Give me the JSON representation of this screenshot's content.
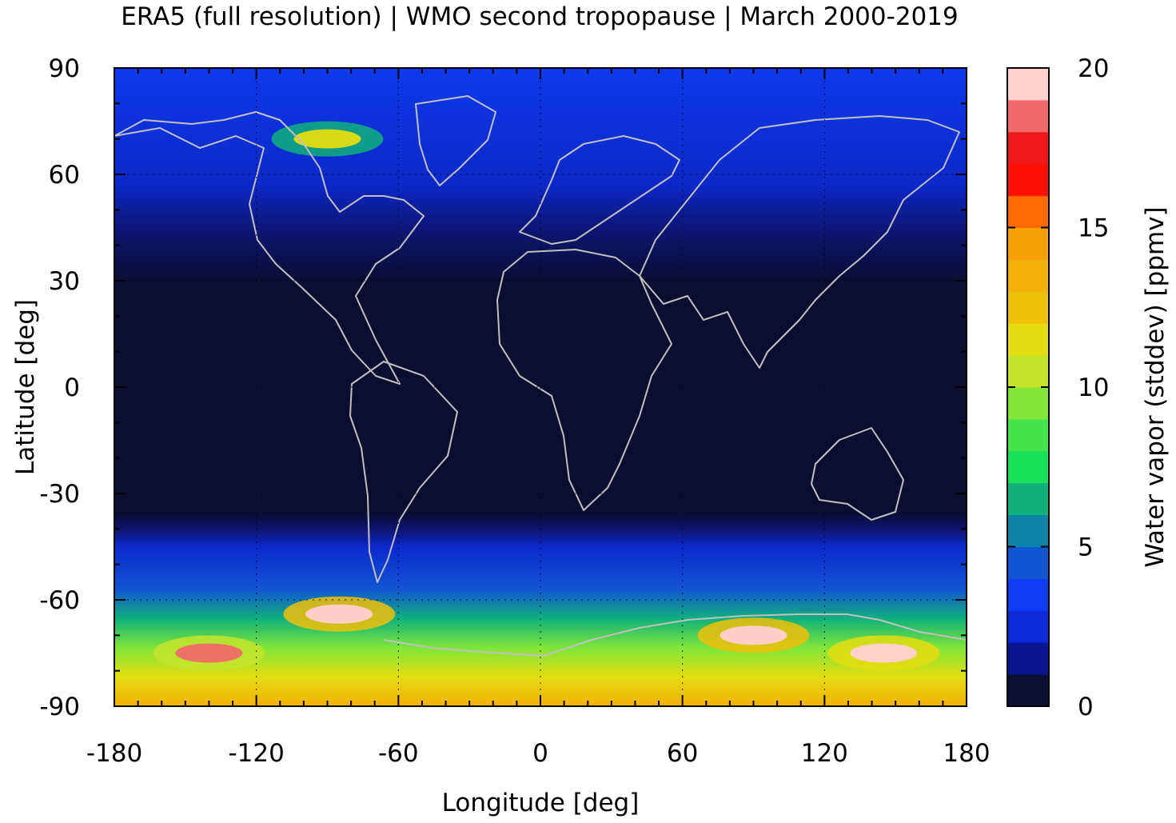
{
  "title": "ERA5 (full resolution) | WMO second tropopause | March 2000-2019",
  "map": {
    "projection": "equirectangular",
    "xlabel": "Longitude [deg]",
    "ylabel": "Latitude [deg]",
    "xlim": [
      -180,
      180
    ],
    "ylim": [
      -90,
      90
    ],
    "xticks": [
      -180,
      -120,
      -60,
      0,
      60,
      120,
      180
    ],
    "yticks": [
      90,
      60,
      30,
      0,
      -30,
      -60,
      -90
    ],
    "xtick_labels": [
      "-180",
      "-120",
      "-60",
      "0",
      "60",
      "120",
      "180"
    ],
    "ytick_labels": [
      "90",
      "60",
      "30",
      "0",
      "-30",
      "-60",
      "-90"
    ],
    "gridlines": "dotted",
    "background_color": "#0c0d33",
    "coastline_color": "#c0c0c0",
    "field_bands": [
      {
        "region": "northern-high-latitudes",
        "lat_range": [
          30,
          90
        ],
        "typical_value_ppmv": 2.5
      },
      {
        "region": "tropics-and-subtropics",
        "lat_range": [
          -40,
          30
        ],
        "typical_value_ppmv": 0.5
      },
      {
        "region": "southern-midlatitudes",
        "lat_range": [
          -60,
          -40
        ],
        "typical_value_ppmv": 4
      },
      {
        "region": "southern-high-latitudes",
        "lat_range": [
          -90,
          -60
        ],
        "typical_value_ppmv": 12
      }
    ],
    "hotspots": [
      {
        "region": "canadian-arctic",
        "lon": -90,
        "lat": 70,
        "value_ppmv": 11
      },
      {
        "region": "south-pacific",
        "lon": -140,
        "lat": -75,
        "value_ppmv": 18
      },
      {
        "region": "drake-passage",
        "lon": -85,
        "lat": -64,
        "value_ppmv": 20
      },
      {
        "region": "southern-indian-ocean",
        "lon": 90,
        "lat": -70,
        "value_ppmv": 20
      },
      {
        "region": "east-antarctica-coast",
        "lon": 145,
        "lat": -75,
        "value_ppmv": 19
      }
    ]
  },
  "colorbar": {
    "label": "Water vapor (stddev) [ppmv]",
    "min": 0,
    "max": 20,
    "ticks": [
      0,
      5,
      10,
      15,
      20
    ],
    "tick_labels": [
      "0",
      "5",
      "10",
      "15",
      "20"
    ],
    "colors": [
      "#0c0d33",
      "#0a1590",
      "#0c2ad8",
      "#0f3cf5",
      "#1256d2",
      "#0e83a8",
      "#10b07c",
      "#18e05a",
      "#45e44a",
      "#80e63a",
      "#c4e42c",
      "#e4dc10",
      "#eec00a",
      "#f4b00a",
      "#f8a008",
      "#ff6a00",
      "#ff1000",
      "#f01818",
      "#f06a6a",
      "#ffd0d0"
    ]
  }
}
